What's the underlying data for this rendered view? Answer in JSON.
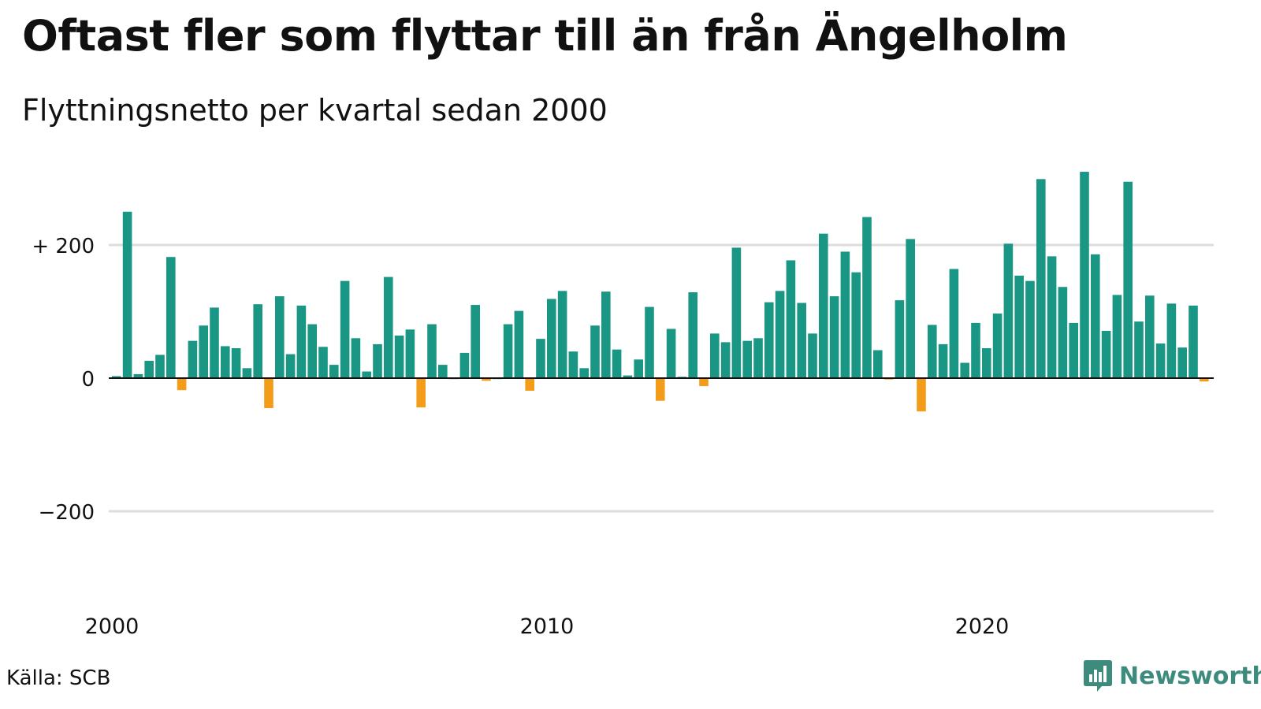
{
  "header": {
    "title": "Oftast fler som flyttar till än från Ängelholm",
    "subtitle": "Flyttningsnetto per kvartal sedan 2000"
  },
  "footer": {
    "source": "Källa: SCB",
    "brand": "Newsworthy",
    "brand_icon": "bar-chart-logo-icon"
  },
  "colors": {
    "positive": "#1a9685",
    "negative": "#f39c1a",
    "grid": "#dddddd",
    "zero_line": "#111111",
    "brand": "#3d8b7c"
  },
  "chart_data": {
    "type": "bar",
    "title": "Oftast fler som flyttar till än från Ängelholm",
    "subtitle": "Flyttningsnetto per kvartal sedan 2000",
    "xlabel": "",
    "ylabel": "",
    "x_ticks": [
      "2000",
      "2010",
      "2020"
    ],
    "y_ticks": [
      {
        "value": 200,
        "label": "+ 200"
      },
      {
        "value": 0,
        "label": "0"
      },
      {
        "value": -200,
        "label": "−200"
      }
    ],
    "ylim": [
      -330,
      320
    ],
    "grid": true,
    "start": "2000 Q1",
    "frequency": "quarterly",
    "values": [
      3,
      250,
      6,
      26,
      35,
      182,
      -18,
      56,
      79,
      106,
      48,
      45,
      15,
      111,
      -45,
      123,
      36,
      109,
      81,
      47,
      20,
      146,
      60,
      10,
      51,
      152,
      64,
      73,
      -44,
      81,
      20,
      0,
      38,
      110,
      -4,
      0,
      81,
      101,
      -19,
      59,
      119,
      131,
      40,
      15,
      79,
      130,
      43,
      4,
      28,
      107,
      -34,
      74,
      2,
      129,
      -12,
      67,
      54,
      196,
      56,
      60,
      114,
      131,
      177,
      113,
      67,
      217,
      123,
      190,
      159,
      242,
      42,
      -2,
      117,
      209,
      -50,
      80,
      51,
      164,
      23,
      83,
      45,
      97,
      202,
      154,
      146,
      299,
      183,
      137,
      83,
      310,
      186,
      71,
      125,
      295,
      85,
      124,
      52,
      112,
      46,
      109,
      -5
    ]
  }
}
